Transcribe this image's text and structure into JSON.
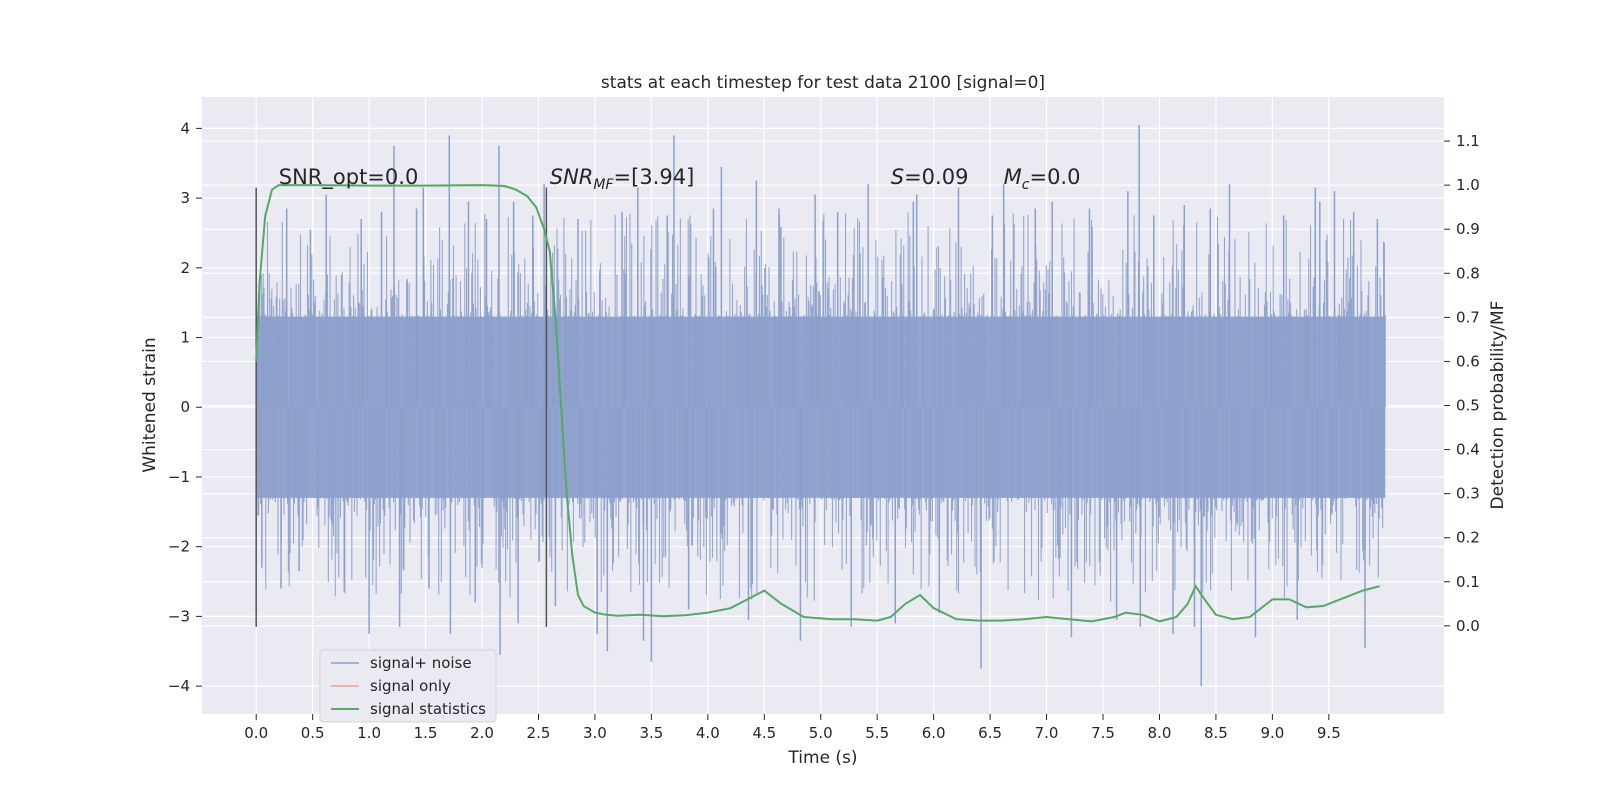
{
  "chart_data": {
    "type": "line",
    "title": "stats at each timestep for test data 2100 [signal=0]",
    "xlabel": "Time (s)",
    "ylabel": "Whitened strain",
    "y2label": "Detection probability/MF",
    "xlim": [
      -0.48,
      10.52
    ],
    "ylim": [
      -4.4,
      4.45
    ],
    "y2lim": [
      -0.2,
      1.2
    ],
    "x_ticks": [
      0.0,
      0.5,
      1.0,
      1.5,
      2.0,
      2.5,
      3.0,
      3.5,
      4.0,
      4.5,
      5.0,
      5.5,
      6.0,
      6.5,
      7.0,
      7.5,
      8.0,
      8.5,
      9.0,
      9.5
    ],
    "x_tick_labels": [
      "0.0",
      "0.5",
      "1.0",
      "1.5",
      "2.0",
      "2.5",
      "3.0",
      "3.5",
      "4.0",
      "4.5",
      "5.0",
      "5.5",
      "6.0",
      "6.5",
      "7.0",
      "7.5",
      "8.0",
      "8.5",
      "9.0",
      "9.5"
    ],
    "y_ticks": [
      -4,
      -3,
      -2,
      -1,
      0,
      1,
      2,
      3,
      4
    ],
    "y_tick_labels": [
      "−4",
      "−3",
      "−2",
      "−1",
      "0",
      "1",
      "2",
      "3",
      "4"
    ],
    "y2_ticks": [
      0.0,
      0.1,
      0.2,
      0.3,
      0.4,
      0.5,
      0.6,
      0.7,
      0.8,
      0.9,
      1.0,
      1.1
    ],
    "y2_tick_labels": [
      "0.0",
      "0.1",
      "0.2",
      "0.3",
      "0.4",
      "0.5",
      "0.6",
      "0.7",
      "0.8",
      "0.9",
      "1.0",
      "1.1"
    ],
    "grid": true,
    "legend_position": "bottom-left",
    "vertical_markers": [
      0.0,
      2.57
    ],
    "annotations": [
      {
        "text": "SNR_opt=0.0",
        "x": 0.2,
        "y": 3.2
      },
      {
        "text_main": "SNR",
        "text_sub": "MF",
        "text_tail": "=[3.94]",
        "x": 2.6,
        "y": 3.2
      },
      {
        "text_main": "S",
        "text_tail": "=0.09",
        "x": 5.62,
        "y": 3.2
      },
      {
        "text_main": "M",
        "text_sub": "c",
        "text_tail": "=0.0",
        "x": 6.62,
        "y": 3.2
      }
    ],
    "series": [
      {
        "name": "signal+ noise",
        "color": "#8da0cb",
        "axis": "left",
        "x_range": [
          0.0,
          10.0
        ],
        "envelope": [
          1.3,
          -1.3
        ],
        "spikes": [
          [
            0.02,
            1.45
          ],
          [
            0.02,
            -1.55
          ],
          [
            0.05,
            -2.3
          ],
          [
            0.22,
            -2.6
          ],
          [
            0.27,
            2.85
          ],
          [
            0.38,
            -2.35
          ],
          [
            0.48,
            2.55
          ],
          [
            0.62,
            3.05
          ],
          [
            0.78,
            -2.65
          ],
          [
            0.93,
            2.7
          ],
          [
            1.0,
            -3.25
          ],
          [
            1.11,
            2.8
          ],
          [
            1.22,
            3.75
          ],
          [
            1.27,
            -3.15
          ],
          [
            1.42,
            2.85
          ],
          [
            1.48,
            3.15
          ],
          [
            1.53,
            -2.6
          ],
          [
            1.71,
            3.9
          ],
          [
            1.72,
            -3.25
          ],
          [
            1.88,
            2.95
          ],
          [
            1.94,
            -2.8
          ],
          [
            2.04,
            2.7
          ],
          [
            2.15,
            3.75
          ],
          [
            2.16,
            -3.55
          ],
          [
            2.28,
            2.95
          ],
          [
            2.32,
            -3.1
          ],
          [
            2.45,
            2.75
          ],
          [
            2.55,
            3.2
          ],
          [
            2.65,
            -2.85
          ],
          [
            2.85,
            2.7
          ],
          [
            3.02,
            -3.25
          ],
          [
            3.11,
            -3.5
          ],
          [
            3.24,
            2.8
          ],
          [
            3.38,
            3.15
          ],
          [
            3.43,
            -3.35
          ],
          [
            3.5,
            -3.65
          ],
          [
            3.64,
            2.75
          ],
          [
            3.7,
            3.9
          ],
          [
            3.83,
            -2.9
          ],
          [
            4.05,
            2.85
          ],
          [
            4.12,
            3.45
          ],
          [
            4.36,
            -3.05
          ],
          [
            4.43,
            3.25
          ],
          [
            4.63,
            2.85
          ],
          [
            4.82,
            -3.35
          ],
          [
            4.95,
            3.05
          ],
          [
            5.15,
            2.8
          ],
          [
            5.27,
            -3.15
          ],
          [
            5.42,
            3.2
          ],
          [
            5.66,
            -3.1
          ],
          [
            5.82,
            2.95
          ],
          [
            5.85,
            3.05
          ],
          [
            6.05,
            -2.95
          ],
          [
            6.22,
            3.15
          ],
          [
            6.42,
            -3.75
          ],
          [
            6.52,
            2.75
          ],
          [
            6.62,
            3.2
          ],
          [
            6.9,
            2.85
          ],
          [
            7.05,
            2.95
          ],
          [
            7.22,
            -3.3
          ],
          [
            7.38,
            2.85
          ],
          [
            7.62,
            -3.05
          ],
          [
            7.72,
            3.1
          ],
          [
            7.82,
            4.05
          ],
          [
            7.83,
            -3.15
          ],
          [
            7.95,
            2.75
          ],
          [
            8.12,
            -3.25
          ],
          [
            8.22,
            2.9
          ],
          [
            8.31,
            -3.15
          ],
          [
            8.37,
            -4.0
          ],
          [
            8.45,
            2.85
          ],
          [
            8.62,
            3.2
          ],
          [
            8.85,
            -3.3
          ],
          [
            9.1,
            2.75
          ],
          [
            9.22,
            -3.05
          ],
          [
            9.38,
            3.15
          ],
          [
            9.42,
            2.95
          ],
          [
            9.55,
            3.1
          ],
          [
            9.72,
            2.8
          ],
          [
            9.82,
            -3.45
          ],
          [
            9.93,
            2.7
          ],
          [
            9.97,
            -1.45
          ]
        ]
      },
      {
        "name": "signal only",
        "color": "#e5a68d",
        "axis": "left",
        "x": [],
        "y": []
      },
      {
        "name": "signal statistics",
        "color": "#55a868",
        "axis": "right",
        "x": [
          0.0,
          0.03,
          0.08,
          0.14,
          0.2,
          0.3,
          0.5,
          1.0,
          1.5,
          2.0,
          2.2,
          2.3,
          2.4,
          2.48,
          2.55,
          2.6,
          2.65,
          2.7,
          2.75,
          2.8,
          2.85,
          2.9,
          3.0,
          3.1,
          3.2,
          3.4,
          3.6,
          3.8,
          4.0,
          4.2,
          4.35,
          4.5,
          4.65,
          4.85,
          5.1,
          5.3,
          5.5,
          5.62,
          5.75,
          5.88,
          6.0,
          6.2,
          6.4,
          6.6,
          6.8,
          7.0,
          7.2,
          7.4,
          7.6,
          7.7,
          7.85,
          8.0,
          8.15,
          8.25,
          8.32,
          8.4,
          8.5,
          8.65,
          8.8,
          9.0,
          9.15,
          9.3,
          9.45,
          9.6,
          9.8,
          9.95
        ],
        "y": [
          0.6,
          0.78,
          0.93,
          0.99,
          1.0,
          1.0,
          1.0,
          0.999,
          0.999,
          1.0,
          0.998,
          0.99,
          0.975,
          0.95,
          0.9,
          0.85,
          0.7,
          0.5,
          0.3,
          0.16,
          0.07,
          0.045,
          0.03,
          0.025,
          0.023,
          0.025,
          0.022,
          0.024,
          0.03,
          0.04,
          0.06,
          0.08,
          0.05,
          0.02,
          0.015,
          0.015,
          0.012,
          0.02,
          0.05,
          0.07,
          0.04,
          0.015,
          0.012,
          0.012,
          0.015,
          0.02,
          0.015,
          0.01,
          0.02,
          0.03,
          0.025,
          0.01,
          0.02,
          0.05,
          0.09,
          0.06,
          0.025,
          0.015,
          0.02,
          0.06,
          0.06,
          0.042,
          0.045,
          0.06,
          0.08,
          0.09
        ]
      }
    ]
  }
}
